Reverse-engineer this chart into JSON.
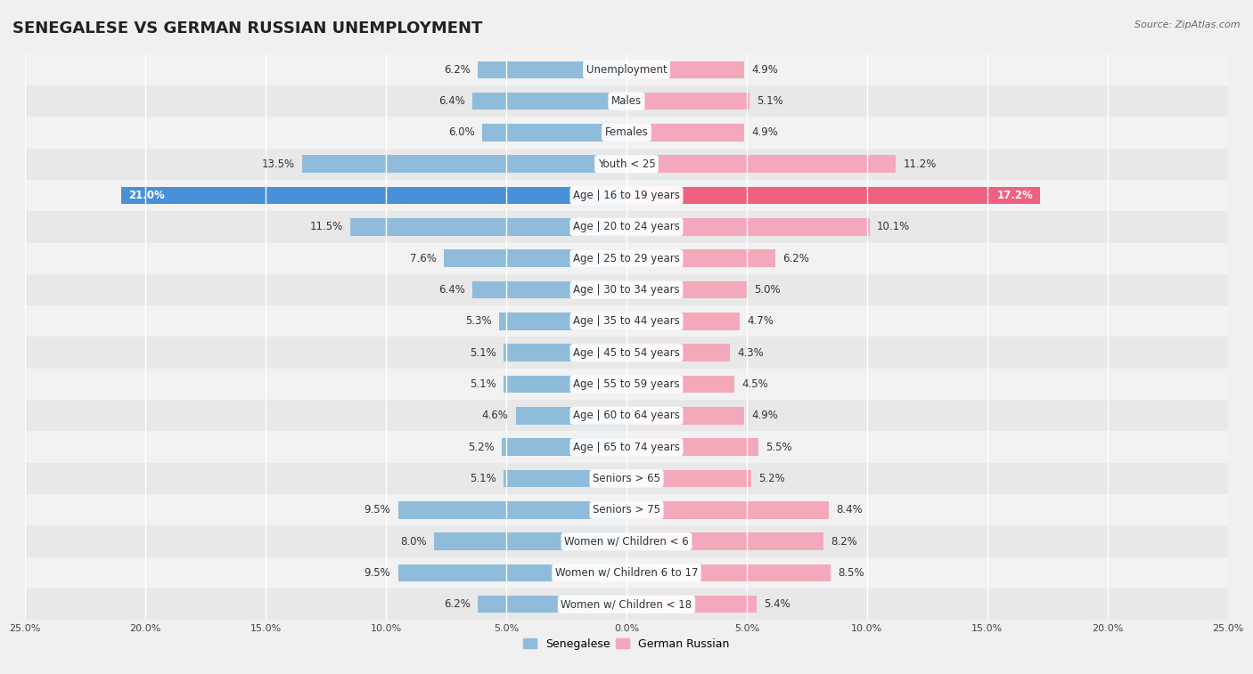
{
  "title": "SENEGALESE VS GERMAN RUSSIAN UNEMPLOYMENT",
  "source": "Source: ZipAtlas.com",
  "categories": [
    "Unemployment",
    "Males",
    "Females",
    "Youth < 25",
    "Age | 16 to 19 years",
    "Age | 20 to 24 years",
    "Age | 25 to 29 years",
    "Age | 30 to 34 years",
    "Age | 35 to 44 years",
    "Age | 45 to 54 years",
    "Age | 55 to 59 years",
    "Age | 60 to 64 years",
    "Age | 65 to 74 years",
    "Seniors > 65",
    "Seniors > 75",
    "Women w/ Children < 6",
    "Women w/ Children 6 to 17",
    "Women w/ Children < 18"
  ],
  "senegalese": [
    6.2,
    6.4,
    6.0,
    13.5,
    21.0,
    11.5,
    7.6,
    6.4,
    5.3,
    5.1,
    5.1,
    4.6,
    5.2,
    5.1,
    9.5,
    8.0,
    9.5,
    6.2
  ],
  "german_russian": [
    4.9,
    5.1,
    4.9,
    11.2,
    17.2,
    10.1,
    6.2,
    5.0,
    4.7,
    4.3,
    4.5,
    4.9,
    5.5,
    5.2,
    8.4,
    8.2,
    8.5,
    5.4
  ],
  "senegalese_color": "#8fbcdb",
  "german_russian_color": "#f4a8bc",
  "highlight_senegalese_color": "#4a90d9",
  "highlight_german_russian_color": "#f06080",
  "bar_height": 0.55,
  "background_light": "#f2f2f2",
  "background_dark": "#e8e8e8",
  "title_fontsize": 13,
  "label_fontsize": 8.5,
  "tick_fontsize": 8,
  "value_fontsize": 8.5
}
